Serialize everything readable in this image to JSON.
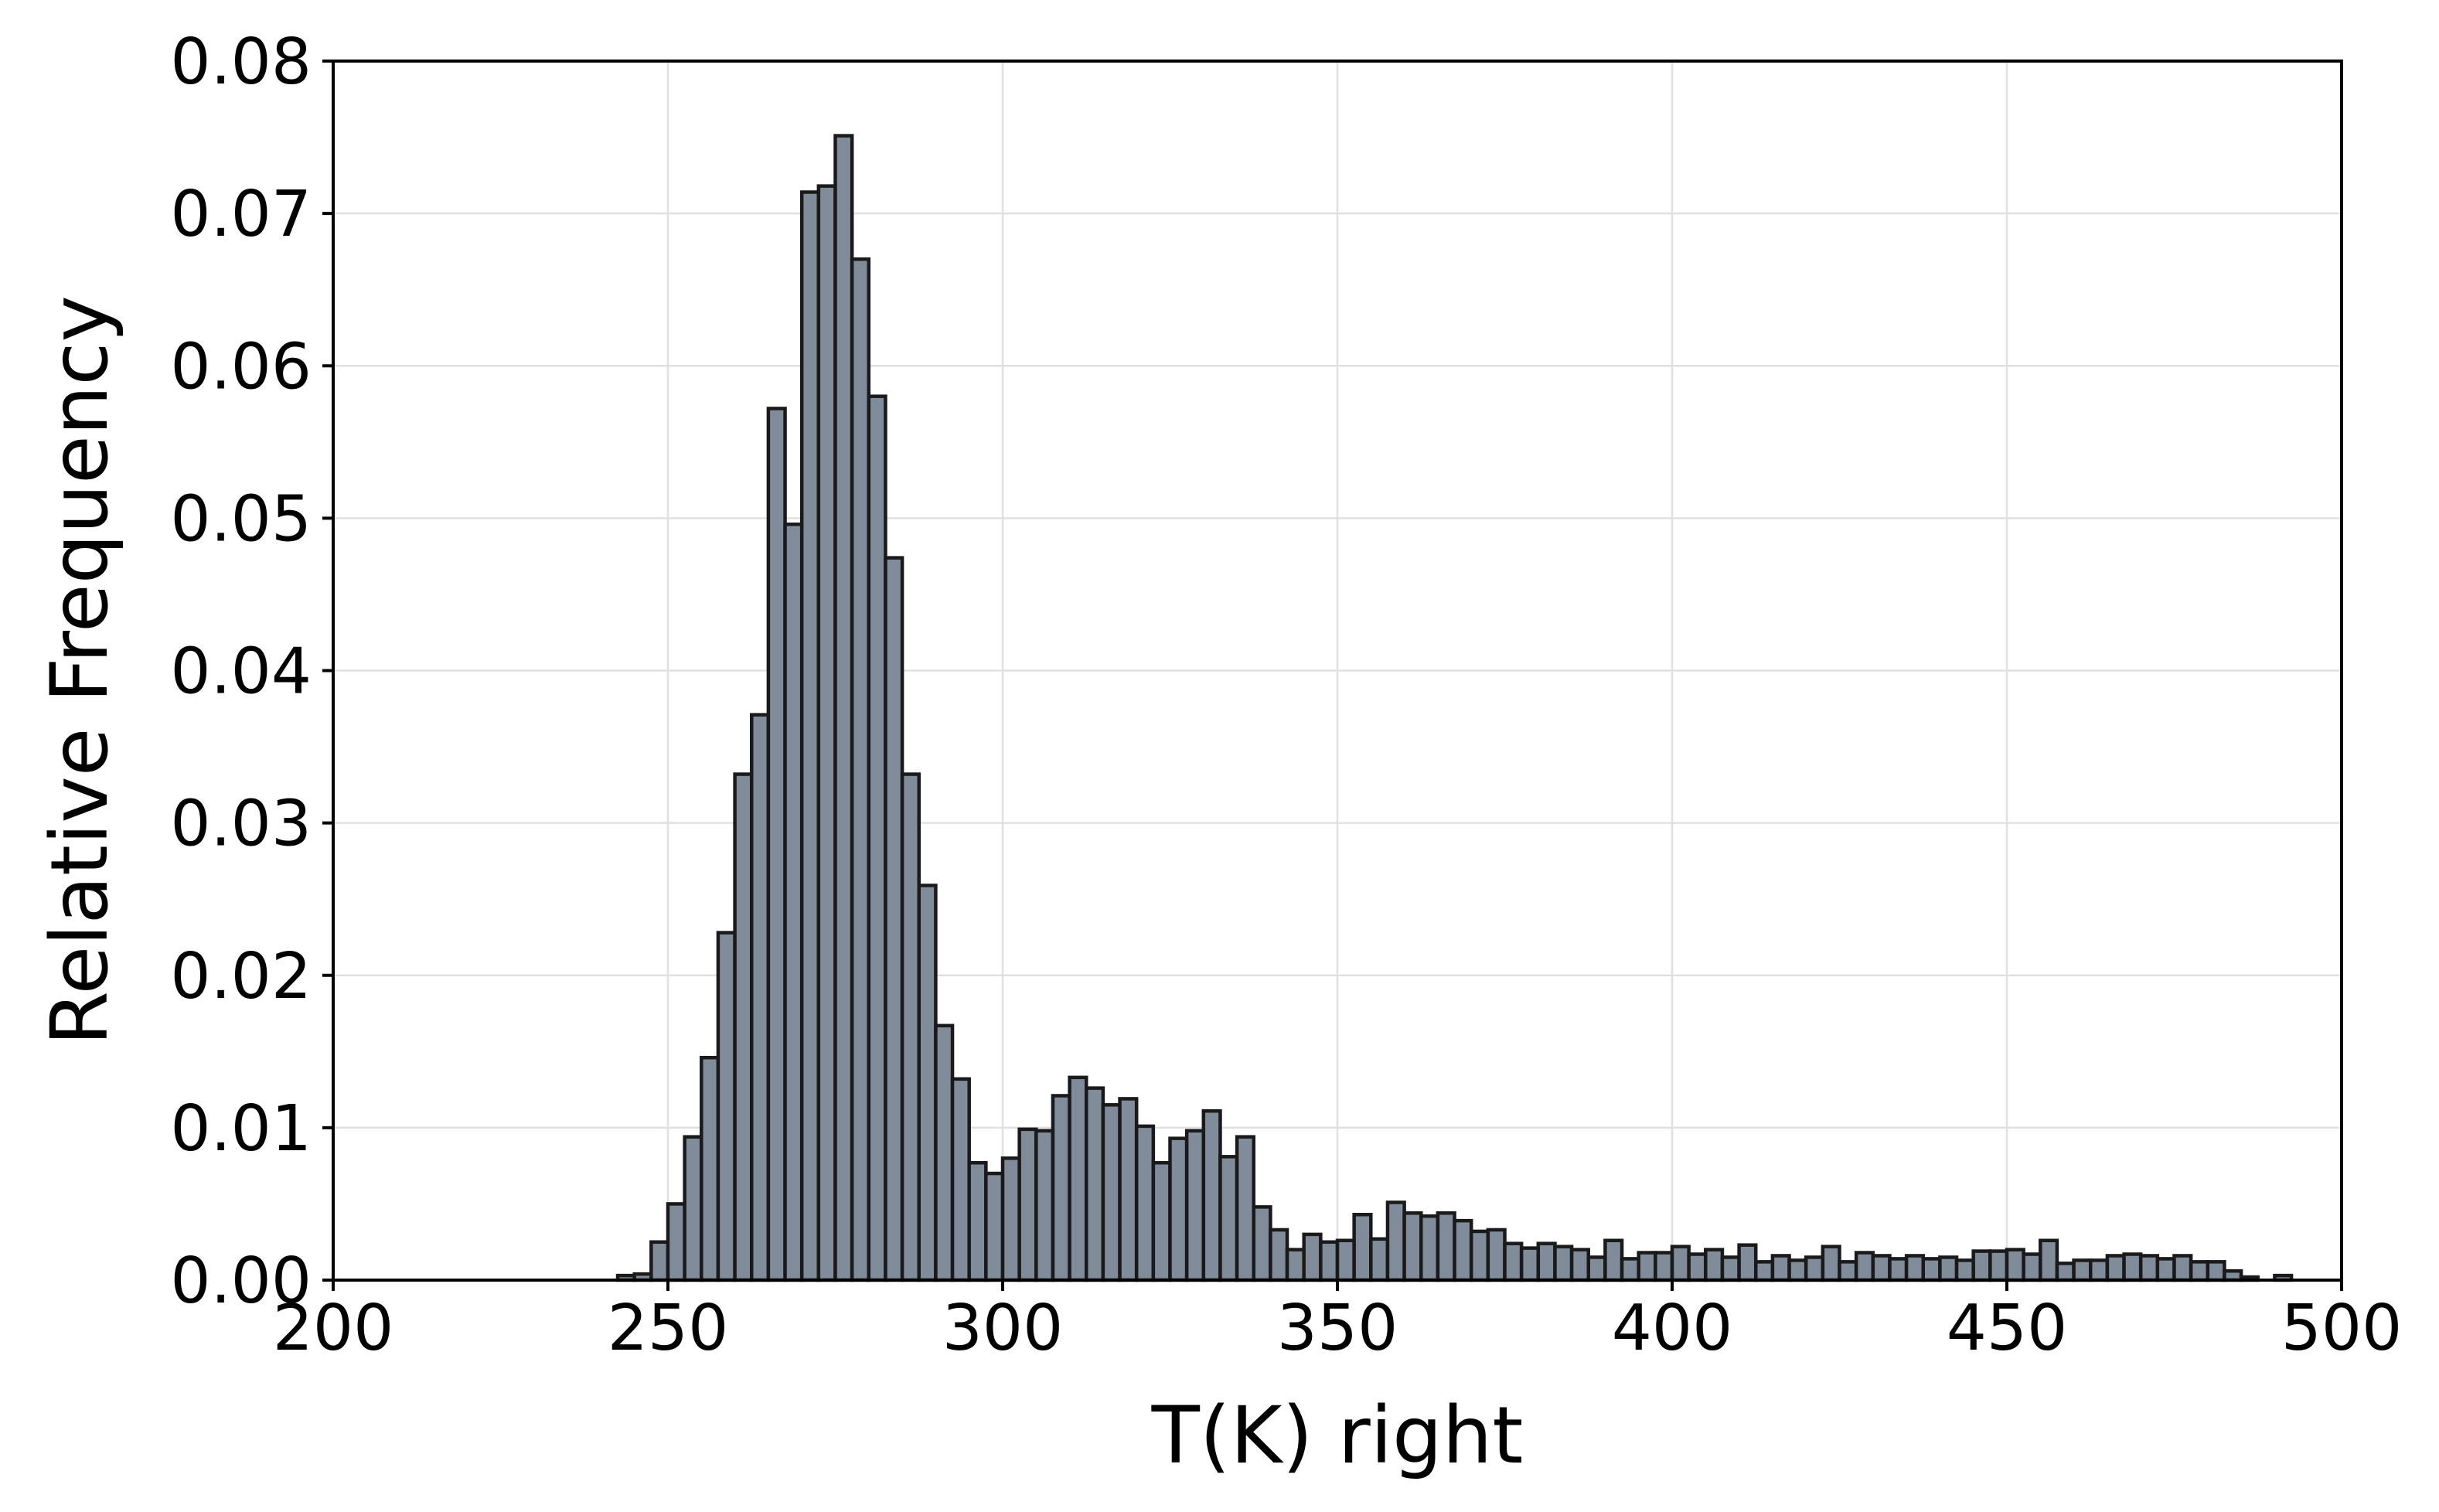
{
  "chart_data": {
    "type": "bar",
    "histogram": true,
    "xlabel": "T(K) right",
    "ylabel": "Relative Frequency",
    "xlim": [
      200,
      500
    ],
    "ylim": [
      0,
      0.08
    ],
    "xticks": [
      "200",
      "250",
      "300",
      "350",
      "400",
      "450",
      "500"
    ],
    "yticks": [
      "0.00",
      "0.01",
      "0.02",
      "0.03",
      "0.04",
      "0.05",
      "0.06",
      "0.07",
      "0.08"
    ],
    "grid": true,
    "bin_width": 2.5,
    "bin_start": 242.5,
    "values": [
      0.0003,
      0.0004,
      0.0025,
      0.005,
      0.0094,
      0.0146,
      0.0228,
      0.0332,
      0.0371,
      0.0572,
      0.0496,
      0.0714,
      0.0718,
      0.0751,
      0.067,
      0.058,
      0.0474,
      0.0332,
      0.0259,
      0.0167,
      0.0132,
      0.0077,
      0.007,
      0.008,
      0.0099,
      0.0098,
      0.0121,
      0.0133,
      0.0126,
      0.0115,
      0.0119,
      0.0101,
      0.0077,
      0.0093,
      0.0098,
      0.0111,
      0.0081,
      0.0094,
      0.0048,
      0.0033,
      0.002,
      0.003,
      0.0025,
      0.0026,
      0.0043,
      0.0027,
      0.0051,
      0.0044,
      0.0042,
      0.0044,
      0.0039,
      0.0032,
      0.0033,
      0.0024,
      0.0021,
      0.0024,
      0.0022,
      0.002,
      0.0015,
      0.0026,
      0.0014,
      0.0018,
      0.0018,
      0.0022,
      0.0017,
      0.002,
      0.0015,
      0.0023,
      0.0012,
      0.0016,
      0.0013,
      0.0015,
      0.0022,
      0.0012,
      0.0018,
      0.0016,
      0.0014,
      0.0016,
      0.0014,
      0.0015,
      0.0013,
      0.0019,
      0.0019,
      0.002,
      0.0017,
      0.0026,
      0.0011,
      0.0013,
      0.0013,
      0.0016,
      0.0017,
      0.0016,
      0.0014,
      0.0016,
      0.0012,
      0.0012,
      0.0006,
      0.0002,
      0.0,
      0.0003
    ],
    "colors": {
      "bar_fill": "#808c99",
      "bar_edge": "#1a1a1a",
      "grid": "#e0e0e0",
      "axes": "#000000"
    }
  }
}
